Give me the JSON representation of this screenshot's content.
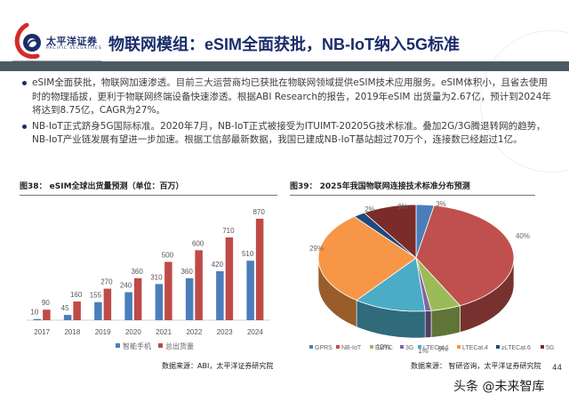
{
  "header": {
    "logo_cn": "太平洋证券",
    "logo_en": "PACIFIC SECURITIES",
    "title": "物联网模组：eSIM全面获批，NB-IoT纳入5G标准"
  },
  "bullets": [
    "eSIM全面获批，物联网加速渗透。目前三大运营商均已获批在物联网领域提供eSIM技术应用服务。eSIM体积小，且省去使用时的物理插拔，更利于物联网终端设备快速渗透。根据ABI Research的报告，2019年eSIM 出货量为2.67亿，预计到2024年将达到8.75亿，CAGR为27%。",
    "NB-IoT正式跻身5G国际标准。2020年7月，NB-IoT正式被接受为ITUIMT-20205G技术标准。叠加2G/3G腾退转网的趋势，NB-IoT产业链发展有望进一步加速。根据工信部最新数据，我国已建成NB-IoT基站超过70万个，连接数已经超过1亿。"
  ],
  "colors": {
    "brand_navy": "#1b2c6b",
    "bar_blue": "#4a7ebb",
    "bar_red": "#be4b48"
  },
  "chart_data": [
    {
      "type": "bar",
      "title": "图38：  eSIM全球出货量预测（单位：百万）",
      "categories": [
        "2017",
        "2018",
        "2019",
        "2020",
        "2021",
        "2022",
        "2023",
        "2024"
      ],
      "series": [
        {
          "name": "智能手机",
          "color": "#4a7ebb",
          "values": [
            10,
            45,
            155,
            240,
            310,
            360,
            420,
            510
          ]
        },
        {
          "name": "总出货量",
          "color": "#be4b48",
          "values": [
            90,
            160,
            270,
            360,
            500,
            600,
            710,
            870
          ]
        }
      ],
      "xlabel": "",
      "ylabel": "",
      "ylim": [
        0,
        900
      ],
      "grid": false,
      "legend": "bottom",
      "source": "数据来源：ABI，太平洋证券研究院"
    },
    {
      "type": "pie",
      "title": "图39：  2025年我国物联网连接技术标准分布预测",
      "style": "3d",
      "slices": [
        {
          "label": "GPRS",
          "value": 3,
          "display": "3%",
          "color": "#4a7ebb"
        },
        {
          "label": "NB-IoT",
          "value": 40,
          "display": "40%",
          "color": "#c0504d"
        },
        {
          "label": "EMTC",
          "value": 5,
          "display": "5%",
          "color": "#9bbb59"
        },
        {
          "label": "3G",
          "value": 1,
          "display": "1%",
          "color": "#8064a2"
        },
        {
          "label": "LTECat.1",
          "value": 12,
          "display": "12%",
          "color": "#4bacc6"
        },
        {
          "label": "LTECat.4",
          "value": 29,
          "display": "29%",
          "color": "#f79646"
        },
        {
          "label": "≥LTECat.6",
          "value": 2,
          "display": "2%",
          "color": "#1f497d"
        },
        {
          "label": "5G",
          "value": 9,
          "display": "9%",
          "color": "#7b2c2a"
        }
      ],
      "legend": "bottom",
      "source": "数据来源：  智研咨询，太平洋证券研究院"
    }
  ],
  "footer": {
    "page_number": "44",
    "watermark": "头条 @未来智库"
  }
}
